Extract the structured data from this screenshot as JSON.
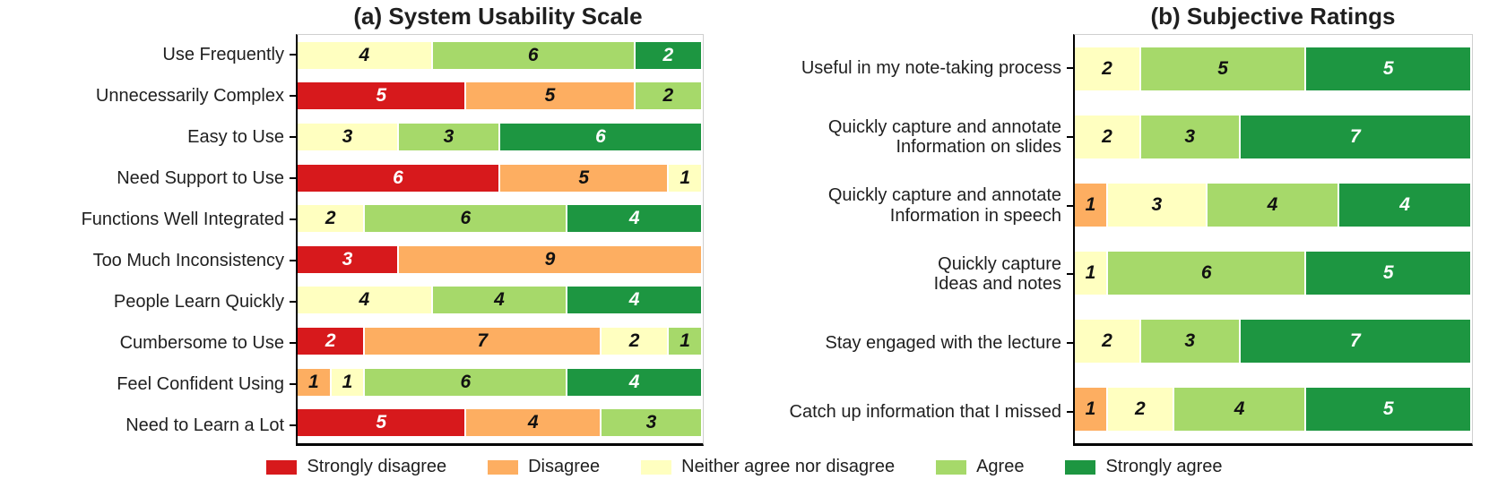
{
  "figure": {
    "background_color": "#ffffff",
    "series_meta": [
      {
        "name": "Strongly disagree",
        "color": "#d7191c",
        "text_color": "#ffffff"
      },
      {
        "name": "Disagree",
        "color": "#fdae61",
        "text_color": "#111111"
      },
      {
        "name": "Neither agree nor disagree",
        "color": "#ffffc0",
        "text_color": "#111111"
      },
      {
        "name": "Agree",
        "color": "#a6d96a",
        "text_color": "#111111"
      },
      {
        "name": "Strongly agree",
        "color": "#1d9641",
        "text_color": "#ffffff"
      }
    ],
    "legend": {
      "position": "bottom-center",
      "items": [
        "Strongly disagree",
        "Disagree",
        "Neither agree nor disagree",
        "Agree",
        "Strongly agree"
      ]
    }
  },
  "chart_data": [
    {
      "type": "bar",
      "orientation": "horizontal",
      "stacked": true,
      "title": "(a) System Usability Scale",
      "xlabel": "",
      "ylabel": "",
      "xlim": [
        0,
        12
      ],
      "grid": false,
      "axis_tick_labels_visible": false,
      "categories": [
        "Use Frequently",
        "Unnecessarily Complex",
        "Easy to Use",
        "Need Support to Use",
        "Functions Well Integrated",
        "Too Much Inconsistency",
        "People Learn Quickly",
        "Cumbersome to Use",
        "Feel Confident Using",
        "Need to Learn a Lot"
      ],
      "series": [
        {
          "name": "Strongly disagree",
          "values": [
            0,
            5,
            0,
            6,
            0,
            3,
            0,
            2,
            0,
            5
          ]
        },
        {
          "name": "Disagree",
          "values": [
            0,
            5,
            0,
            5,
            0,
            9,
            0,
            7,
            1,
            4
          ]
        },
        {
          "name": "Neither agree nor disagree",
          "values": [
            4,
            0,
            3,
            1,
            2,
            0,
            4,
            2,
            1,
            0
          ]
        },
        {
          "name": "Agree",
          "values": [
            6,
            2,
            3,
            0,
            6,
            0,
            4,
            1,
            6,
            3
          ]
        },
        {
          "name": "Strongly agree",
          "values": [
            2,
            0,
            6,
            0,
            4,
            0,
            4,
            0,
            4,
            0
          ]
        }
      ]
    },
    {
      "type": "bar",
      "orientation": "horizontal",
      "stacked": true,
      "title": "(b) Subjective Ratings",
      "xlabel": "",
      "ylabel": "",
      "xlim": [
        0,
        12
      ],
      "grid": false,
      "axis_tick_labels_visible": false,
      "categories": [
        "Useful in my note-taking process",
        "Quickly capture and annotate\nInformation on slides",
        "Quickly capture and annotate\nInformation in speech",
        "Quickly capture\nIdeas and notes",
        "Stay engaged with the lecture",
        "Catch up information that I missed"
      ],
      "series": [
        {
          "name": "Strongly disagree",
          "values": [
            0,
            0,
            0,
            0,
            0,
            0
          ]
        },
        {
          "name": "Disagree",
          "values": [
            0,
            0,
            1,
            0,
            0,
            1
          ]
        },
        {
          "name": "Neither agree nor disagree",
          "values": [
            2,
            2,
            3,
            1,
            2,
            2
          ]
        },
        {
          "name": "Agree",
          "values": [
            5,
            3,
            4,
            6,
            3,
            4
          ]
        },
        {
          "name": "Strongly agree",
          "values": [
            5,
            7,
            4,
            5,
            7,
            5
          ]
        }
      ]
    }
  ]
}
